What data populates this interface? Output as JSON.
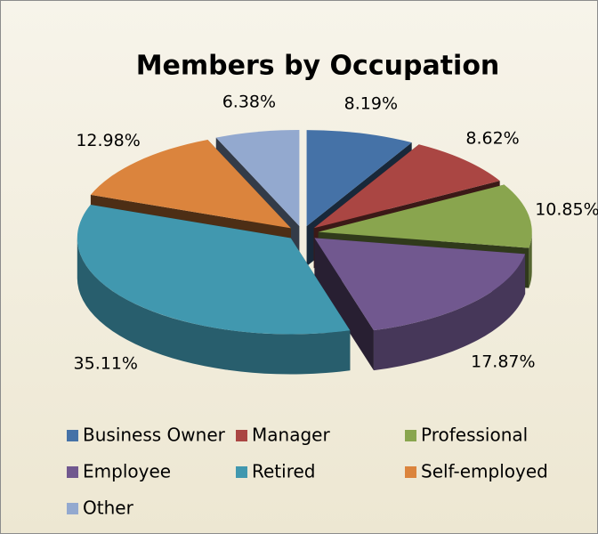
{
  "chart_data": {
    "type": "pie",
    "title": "Members by Occupation",
    "categories": [
      "Business Owner",
      "Manager",
      "Professional",
      "Employee",
      "Retired",
      "Self-employed",
      "Other"
    ],
    "values": [
      8.19,
      8.62,
      10.85,
      17.87,
      35.11,
      12.98,
      6.38
    ],
    "value_labels": [
      "8.19%",
      "8.62%",
      "10.85%",
      "17.87%",
      "35.11%",
      "12.98%",
      "6.38%"
    ],
    "colors": [
      "#4572a7",
      "#aa4643",
      "#89a54e",
      "#71588f",
      "#4198af",
      "#db843d",
      "#93a9cf"
    ],
    "legend": "bottom"
  }
}
